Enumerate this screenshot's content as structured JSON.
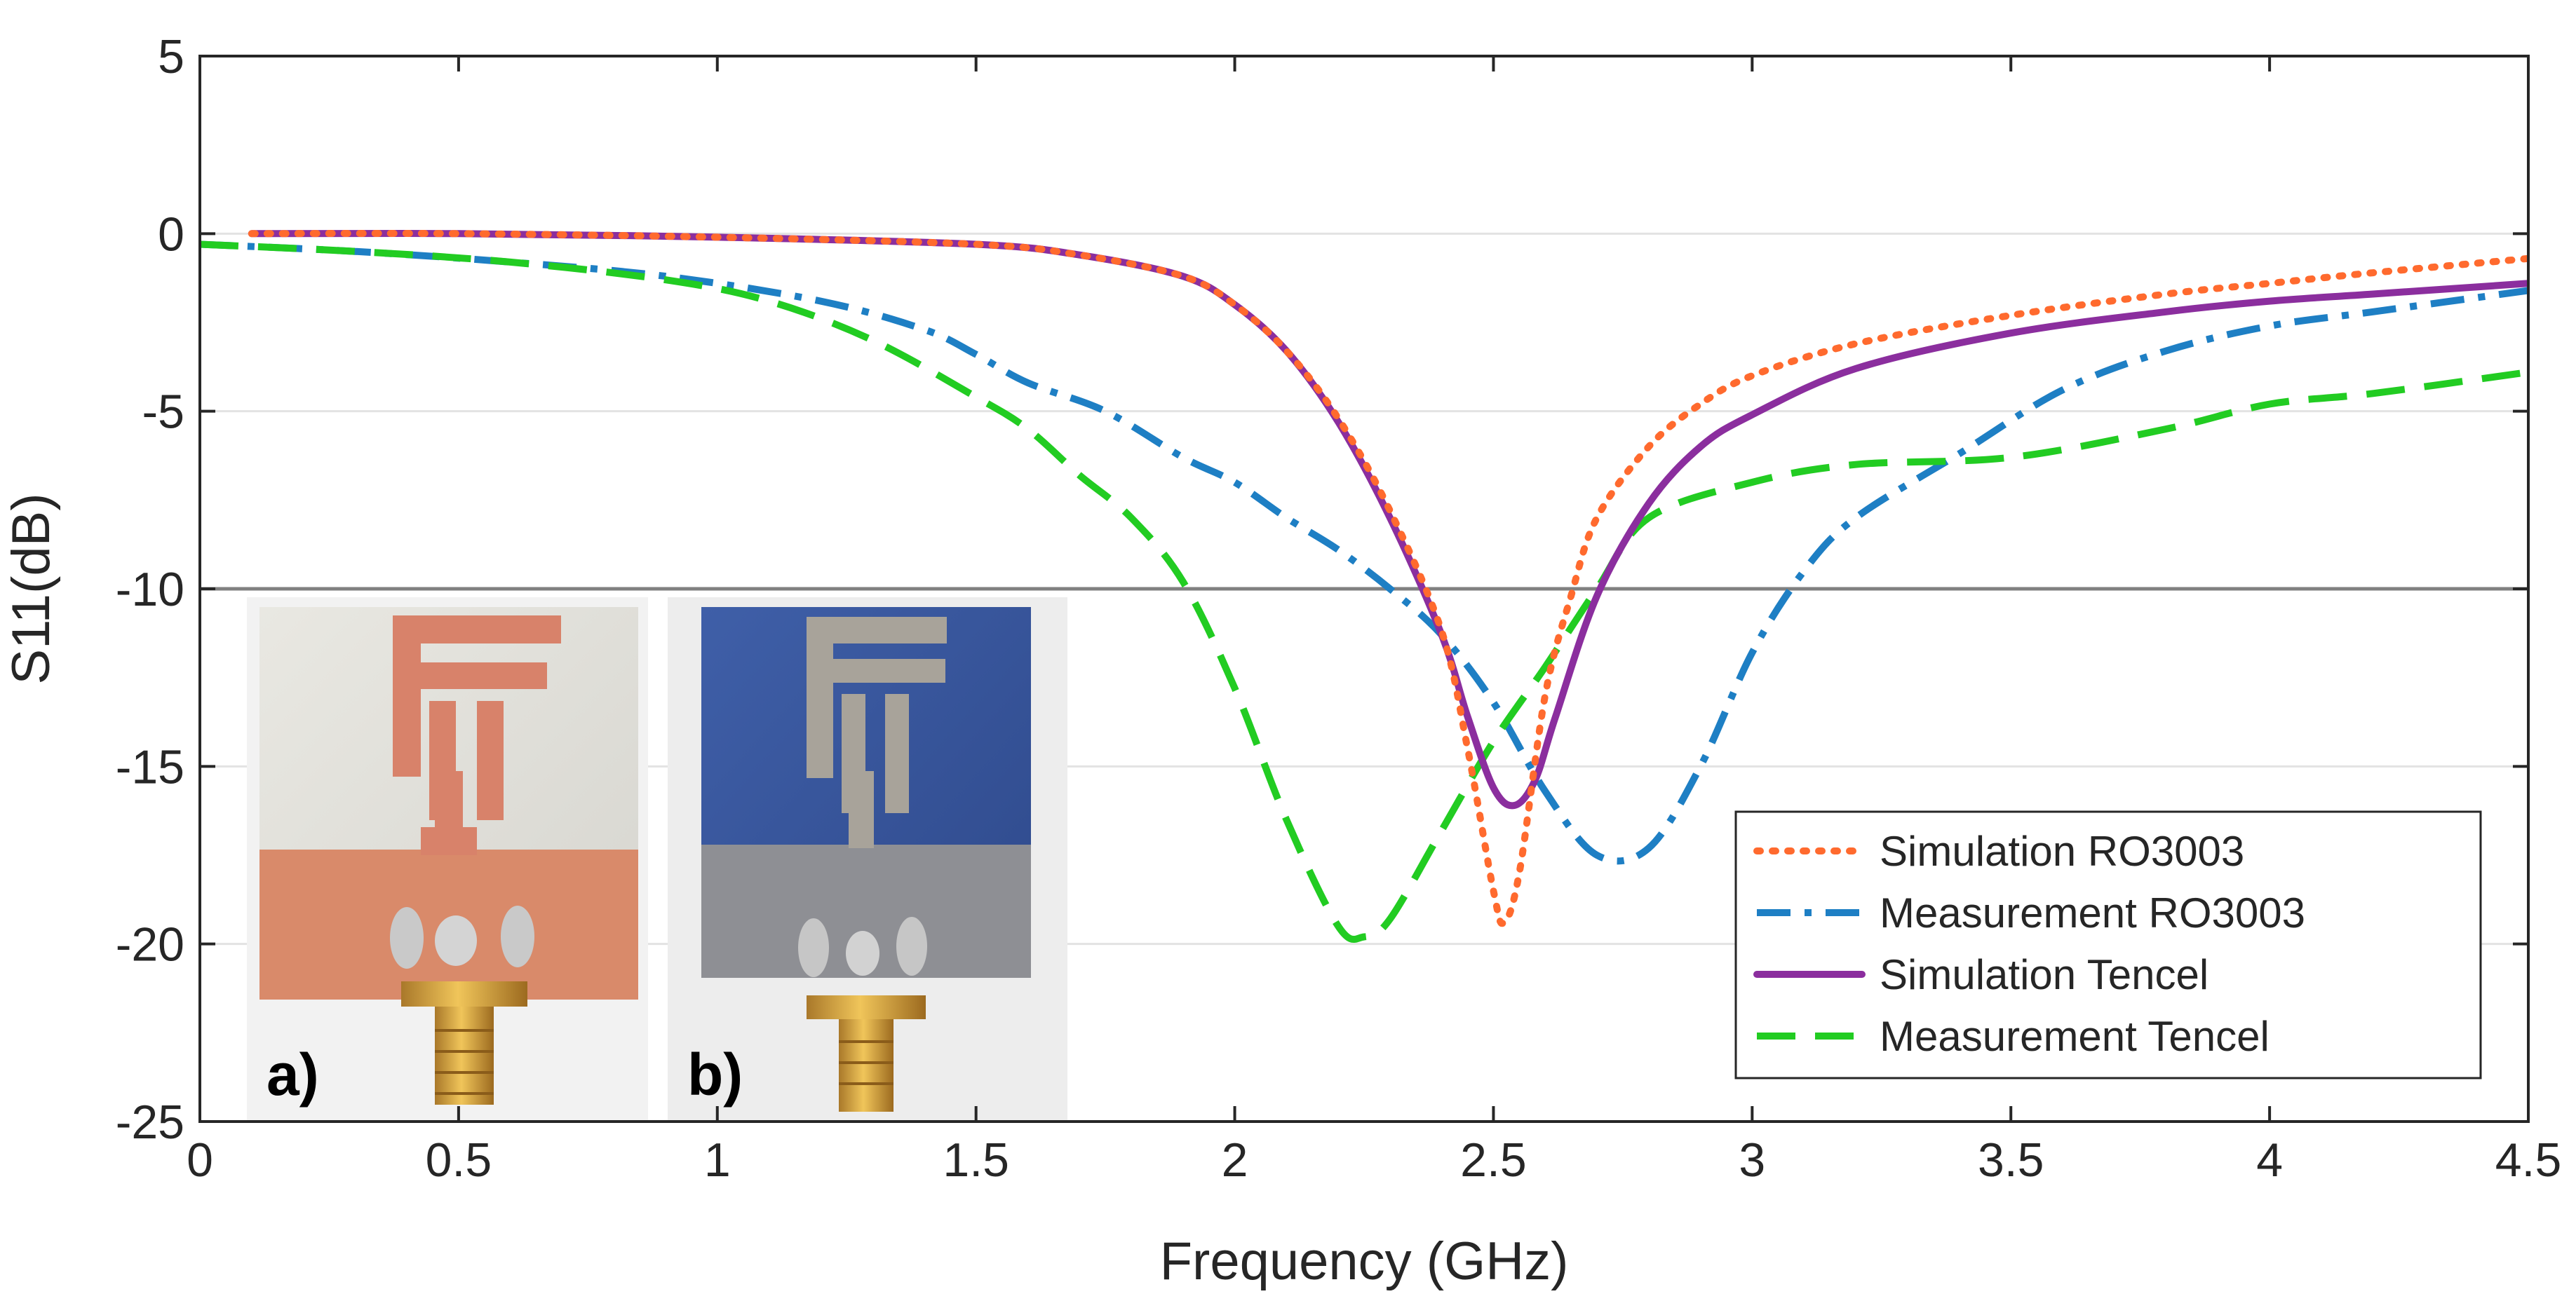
{
  "chart_data": {
    "type": "line",
    "title": "",
    "xlabel": "Frequency (GHz)",
    "ylabel": "S11(dB)",
    "xlim": [
      0,
      4.5
    ],
    "ylim": [
      -25,
      5
    ],
    "xticks": [
      0,
      0.5,
      1,
      1.5,
      2,
      2.5,
      3,
      3.5,
      4,
      4.5
    ],
    "xtick_labels": [
      "0",
      "0.5",
      "1",
      "1.5",
      "2",
      "2.5",
      "3",
      "3.5",
      "4",
      "4.5"
    ],
    "yticks": [
      5,
      0,
      -5,
      -10,
      -15,
      -20,
      -25
    ],
    "ytick_labels": [
      "5",
      "0",
      "-5",
      "-10",
      "-15",
      "-20",
      "-25"
    ],
    "grid": true,
    "legend_position": "bottom-right",
    "reference_line": {
      "y": -10,
      "color": "#808080"
    },
    "series": [
      {
        "name": "Simulation RO3003",
        "color": "#FF6A2E",
        "style": "dotted",
        "x": [
          0.1,
          0.5,
          1.0,
          1.5,
          1.7,
          1.9,
          2.0,
          2.1,
          2.2,
          2.3,
          2.4,
          2.45,
          2.5,
          2.52,
          2.55,
          2.6,
          2.65,
          2.7,
          2.8,
          2.9,
          3.0,
          3.2,
          3.5,
          3.8,
          4.0,
          4.2,
          4.5
        ],
        "y": [
          0.0,
          0.0,
          -0.1,
          -0.3,
          -0.6,
          -1.2,
          -2.0,
          -3.3,
          -5.2,
          -7.8,
          -11.2,
          -14.5,
          -18.5,
          -19.4,
          -18.0,
          -13.0,
          -10.2,
          -8.0,
          -6.0,
          -4.8,
          -4.0,
          -3.1,
          -2.3,
          -1.7,
          -1.4,
          -1.1,
          -0.7
        ]
      },
      {
        "name": "Measurement RO3003",
        "color": "#1E7FC4",
        "style": "dashdot",
        "x": [
          0.0,
          0.3,
          0.6,
          0.9,
          1.2,
          1.4,
          1.5,
          1.6,
          1.75,
          1.9,
          2.0,
          2.1,
          2.2,
          2.3,
          2.4,
          2.5,
          2.6,
          2.7,
          2.8,
          2.9,
          3.0,
          3.1,
          3.2,
          3.4,
          3.6,
          3.8,
          4.0,
          4.2,
          4.5
        ],
        "y": [
          -0.3,
          -0.5,
          -0.8,
          -1.2,
          -1.9,
          -2.7,
          -3.4,
          -4.2,
          -5.0,
          -6.3,
          -7.0,
          -8.0,
          -8.9,
          -10.0,
          -11.3,
          -13.2,
          -15.7,
          -17.5,
          -17.3,
          -15.0,
          -11.8,
          -9.5,
          -8.0,
          -6.2,
          -4.4,
          -3.3,
          -2.6,
          -2.2,
          -1.6
        ]
      },
      {
        "name": "Simulation Tencel",
        "color": "#8B2E9E",
        "style": "solid",
        "x": [
          0.1,
          0.5,
          1.0,
          1.5,
          1.7,
          1.9,
          2.0,
          2.1,
          2.2,
          2.3,
          2.4,
          2.45,
          2.5,
          2.54,
          2.58,
          2.62,
          2.7,
          2.8,
          2.9,
          3.0,
          3.2,
          3.5,
          3.8,
          4.0,
          4.2,
          4.5
        ],
        "y": [
          0.0,
          0.0,
          -0.1,
          -0.3,
          -0.6,
          -1.2,
          -2.0,
          -3.3,
          -5.3,
          -8.0,
          -11.3,
          -13.6,
          -15.6,
          -16.1,
          -15.4,
          -13.6,
          -10.2,
          -7.6,
          -6.0,
          -5.1,
          -3.8,
          -2.8,
          -2.2,
          -1.9,
          -1.7,
          -1.4
        ]
      },
      {
        "name": "Measurement Tencel",
        "color": "#22CC22",
        "style": "dashed",
        "x": [
          0.0,
          0.3,
          0.6,
          0.9,
          1.1,
          1.3,
          1.5,
          1.6,
          1.7,
          1.8,
          1.9,
          2.0,
          2.1,
          2.2,
          2.25,
          2.3,
          2.4,
          2.5,
          2.6,
          2.7,
          2.8,
          3.0,
          3.2,
          3.5,
          3.8,
          4.0,
          4.2,
          4.5
        ],
        "y": [
          -0.3,
          -0.5,
          -0.8,
          -1.3,
          -1.9,
          -3.0,
          -4.6,
          -5.5,
          -6.8,
          -8.0,
          -9.8,
          -12.8,
          -16.5,
          -19.5,
          -19.8,
          -19.3,
          -16.8,
          -14.3,
          -12.2,
          -10.0,
          -8.0,
          -7.0,
          -6.5,
          -6.3,
          -5.5,
          -4.8,
          -4.5,
          -3.9
        ]
      }
    ],
    "insets": [
      {
        "label": "a)"
      },
      {
        "label": "b)"
      }
    ]
  }
}
